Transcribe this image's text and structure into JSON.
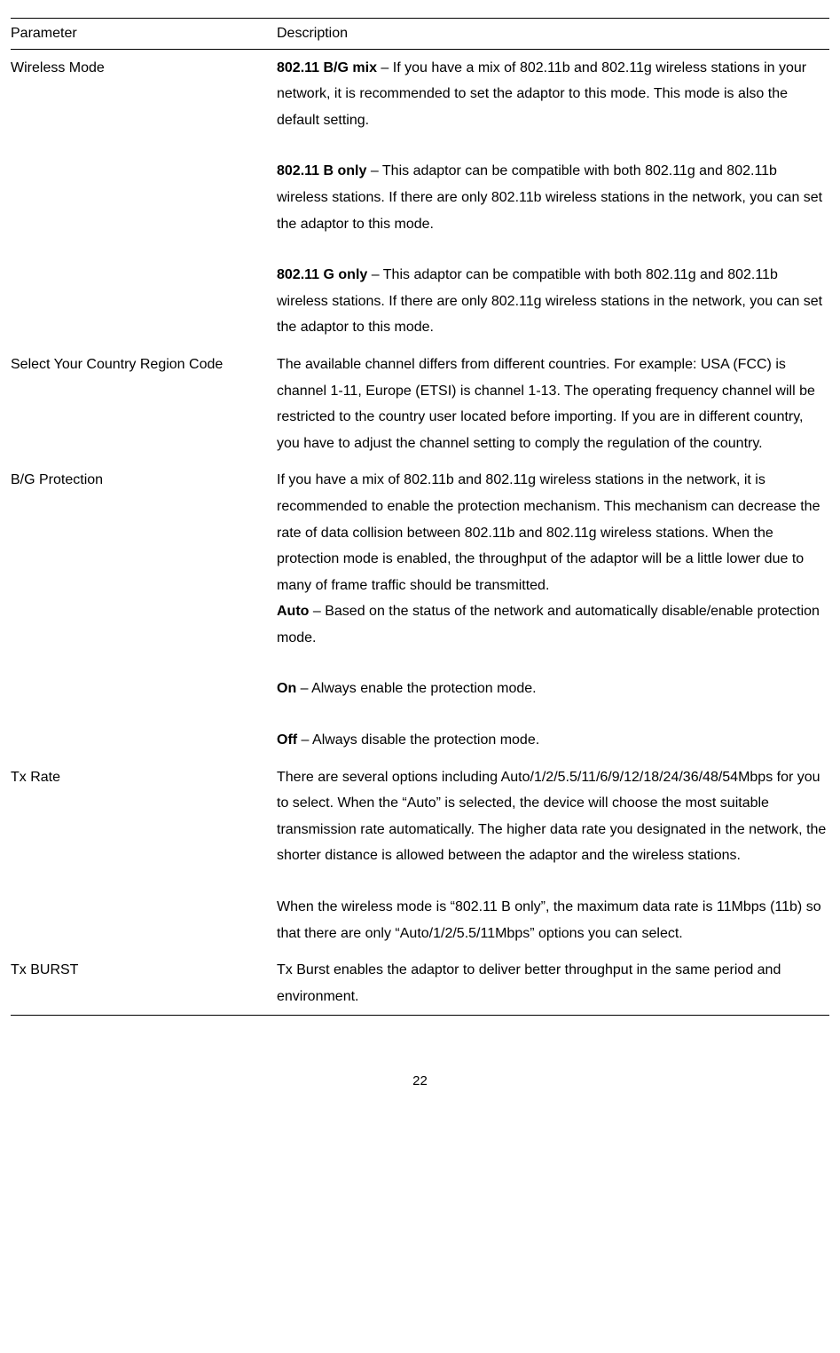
{
  "table": {
    "headers": {
      "parameter": "Parameter",
      "description": "Description"
    },
    "rows": {
      "wireless_mode": {
        "param": "Wireless Mode",
        "p1_bold": "802.11 B/G mix",
        "p1_text": " – If you have a mix of 802.11b and 802.11g wireless stations in your network, it is recommended to set the adaptor to this mode. This mode is also the default setting.",
        "p2_bold": "802.11 B only",
        "p2_text": " – This adaptor can be compatible with both 802.11g and 802.11b wireless stations. If there are only 802.11b wireless stations in the network, you can set the adaptor to this mode.",
        "p3_bold": "802.11 G only",
        "p3_text": " – This adaptor can be compatible with both 802.11g and 802.11b wireless stations. If there are only 802.11g wireless stations in the network, you can set the adaptor to this mode."
      },
      "country_region": {
        "param": "Select Your Country Region Code",
        "p1_text": "The available channel differs from different countries. For example: USA (FCC) is channel 1-11, Europe (ETSI) is channel 1-13. The operating frequency channel will be restricted to the country user located before importing. If you are in different country, you have to adjust the channel setting to comply the regulation of the country."
      },
      "bg_protection": {
        "param": "B/G Protection",
        "p1_text": "If you have a mix of 802.11b and 802.11g wireless stations in the network, it is recommended to enable the protection mechanism. This mechanism can decrease the rate of data collision between 802.11b and 802.11g wireless stations. When the protection mode is enabled, the throughput of the adaptor will be a little lower due to many of frame traffic should be transmitted.",
        "p2_bold": "Auto",
        "p2_text": " – Based on the status of the network and automatically disable/enable protection mode.",
        "p3_bold": "On",
        "p3_text": " – Always enable the protection mode.",
        "p4_bold": "Off",
        "p4_text": " – Always disable the protection mode."
      },
      "tx_rate": {
        "param": "Tx Rate",
        "p1_text": "There are several options including Auto/1/2/5.5/11/6/9/12/18/24/36/48/54Mbps for you to select. When the “Auto” is selected, the device will choose the most suitable transmission rate automatically. The higher data rate you designated in the network, the shorter distance is allowed between the adaptor and the wireless stations.",
        "p2_text": "When the wireless mode is “802.11 B only”, the maximum data rate is 11Mbps (11b) so that there are only “Auto/1/2/5.5/11Mbps” options you can select."
      },
      "tx_burst": {
        "param": "Tx BURST",
        "p1_text": "Tx Burst enables the adaptor to deliver better throughput in the same period and environment."
      }
    }
  },
  "page_number": "22"
}
